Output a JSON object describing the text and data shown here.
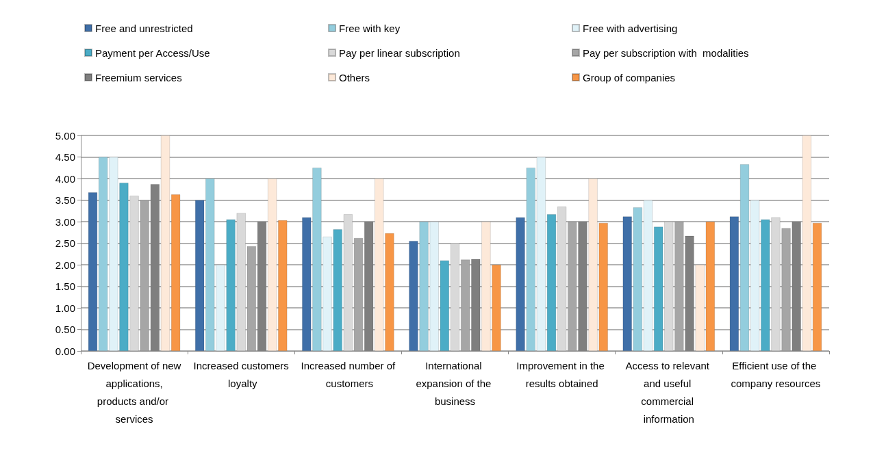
{
  "chart_data": {
    "type": "bar",
    "categories": [
      "Development of new applications, products and/or services",
      "Increased customers loyalty",
      "Increased number of customers",
      "International expansion of the business",
      "Improvement in the results obtained",
      "Access to relevant and useful commercial information",
      "Efficient use of the company resources"
    ],
    "series": [
      {
        "name": "Free and unrestricted",
        "color": "#3f6fa8",
        "values": [
          3.68,
          3.5,
          3.1,
          2.55,
          3.1,
          3.12,
          3.12
        ]
      },
      {
        "name": "Free with key",
        "color": "#93cddd",
        "values": [
          4.5,
          4.0,
          4.25,
          3.0,
          4.25,
          3.33,
          4.33
        ]
      },
      {
        "name": "Free with advertising",
        "color": "#e0f2f8",
        "values": [
          4.5,
          2.0,
          2.65,
          3.0,
          4.5,
          3.5,
          3.5
        ]
      },
      {
        "name": "Payment per Access/Use",
        "color": "#4bacc6",
        "values": [
          3.9,
          3.05,
          2.82,
          2.1,
          3.17,
          2.88,
          3.05
        ]
      },
      {
        "name": "Pay per linear subscription",
        "color": "#d9d9d9",
        "values": [
          3.6,
          3.2,
          3.17,
          2.5,
          3.35,
          3.0,
          3.1
        ]
      },
      {
        "name": "Pay per subscription with  modalities",
        "color": "#a6a6a6",
        "values": [
          3.5,
          2.43,
          2.62,
          2.12,
          3.0,
          3.0,
          2.85
        ]
      },
      {
        "name": "Freemium services",
        "color": "#7f7f7f",
        "values": [
          3.87,
          3.0,
          3.0,
          2.13,
          3.0,
          2.67,
          3.0
        ]
      },
      {
        "name": "Others",
        "color": "#fde9d9",
        "values": [
          5.0,
          4.0,
          4.0,
          3.0,
          4.0,
          2.0,
          5.0
        ]
      },
      {
        "name": "Group of companies",
        "color": "#f79646",
        "values": [
          3.63,
          3.03,
          2.73,
          2.0,
          2.97,
          3.0,
          2.97
        ]
      }
    ],
    "ylim": [
      0,
      5
    ],
    "yticks": [
      {
        "value": 0,
        "label": "0.00"
      },
      {
        "value": 0.5,
        "label": "0.50"
      },
      {
        "value": 1,
        "label": "1.00"
      },
      {
        "value": 1.5,
        "label": "1.50"
      },
      {
        "value": 2,
        "label": "2.00"
      },
      {
        "value": 2.5,
        "label": "2.50"
      },
      {
        "value": 3,
        "label": "3.00"
      },
      {
        "value": 3.5,
        "label": "3.50"
      },
      {
        "value": 4,
        "label": "4.00"
      },
      {
        "value": 4.5,
        "label": "4.50"
      },
      {
        "value": 5,
        "label": "5.00"
      }
    ],
    "grid": "y",
    "legend": "top"
  }
}
